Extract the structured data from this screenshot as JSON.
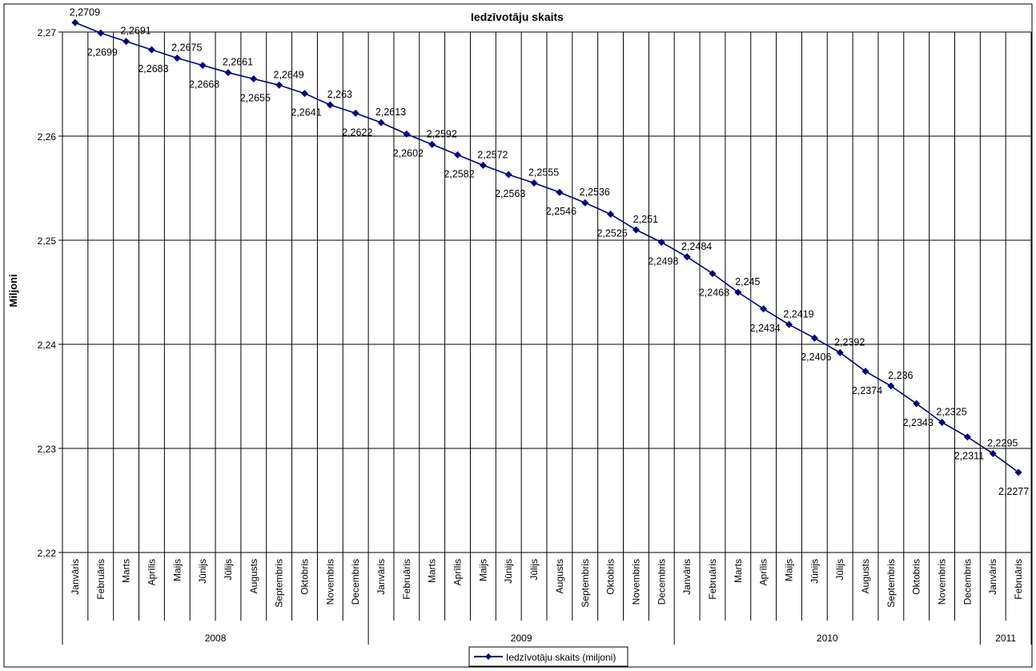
{
  "chart_data": {
    "type": "line",
    "title": "Iedzīvotāju skaits",
    "ylabel": "Miljoni",
    "xlabel": "",
    "ylim": [
      2.22,
      2.27
    ],
    "yticks": [
      "2,22",
      "2,23",
      "2,24",
      "2,25",
      "2,26",
      "2,27"
    ],
    "ytick_values": [
      2.22,
      2.23,
      2.24,
      2.25,
      2.26,
      2.27
    ],
    "grid": true,
    "legend_position": "bottom",
    "categories": [
      "Janvāris",
      "Februāris",
      "Marts",
      "Aprīlis",
      "Maijs",
      "Jūnijs",
      "Jūlijs",
      "Augusts",
      "Septembris",
      "Oktobris",
      "Novembris",
      "Decembris",
      "Janvāris",
      "Februāris",
      "Marts",
      "Aprīlis",
      "Maijs",
      "Jūnijs",
      "Jūlijs",
      "Augusts",
      "Septembris",
      "Oktobris",
      "Novembris",
      "Decembris",
      "Janvāris",
      "Februāris",
      "Marts",
      "Aprīlis",
      "Maijs",
      "Jūnijs",
      "Jūlijs",
      "Augusts",
      "Septembris",
      "Oktobris",
      "Novembris",
      "Decembris",
      "Janvāris",
      "Februāris"
    ],
    "years": [
      {
        "label": "2008",
        "count": 12
      },
      {
        "label": "2009",
        "count": 12
      },
      {
        "label": "2010",
        "count": 12
      },
      {
        "label": "2011",
        "count": 2
      }
    ],
    "series": [
      {
        "name": "Iedzīvotāju skaits (miljoni)",
        "color": "#000080",
        "values": [
          2.2709,
          2.2699,
          2.2691,
          2.2683,
          2.2675,
          2.2668,
          2.2661,
          2.2655,
          2.2649,
          2.2641,
          2.263,
          2.2622,
          2.2613,
          2.2602,
          2.2592,
          2.2582,
          2.2572,
          2.2563,
          2.2555,
          2.2546,
          2.2536,
          2.2525,
          2.251,
          2.2498,
          2.2484,
          2.2468,
          2.245,
          2.2434,
          2.2419,
          2.2406,
          2.2392,
          2.2374,
          2.236,
          2.2343,
          2.2325,
          2.2311,
          2.2295,
          2.2277
        ],
        "labels": [
          "2,2709",
          "2,2699",
          "2,2691",
          "2,2683",
          "2,2675",
          "2,2668",
          "2,2661",
          "2,2655",
          "2,2649",
          "2,2641",
          "2,263",
          "2,2622",
          "2,2613",
          "2,2602",
          "2,2592",
          "2,2582",
          "2,2572",
          "2,2563",
          "2,2555",
          "2,2546",
          "2,2536",
          "2,2525",
          "2,251",
          "2,2498",
          "2,2484",
          "2,2468",
          "2,245",
          "2,2434",
          "2,2419",
          "2,2406",
          "2,2392",
          "2,2374",
          "2,236",
          "2,2343",
          "2,2325",
          "2,2311",
          "2,2295",
          "2,2277"
        ]
      }
    ]
  }
}
